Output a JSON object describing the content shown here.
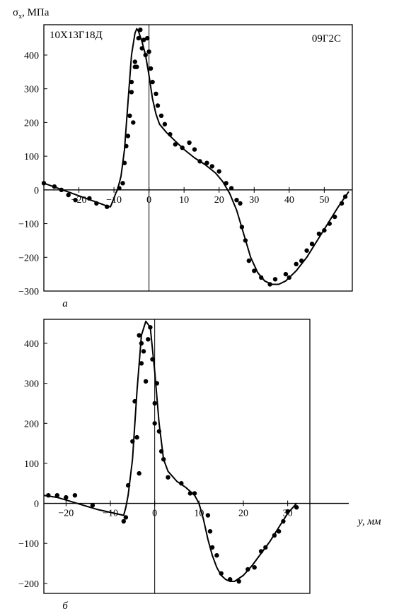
{
  "chart_data": [
    {
      "type": "scatter",
      "panel_label": "а",
      "ylabel": "σ",
      "ylabel_sub": "x",
      "ylabel_unit": ", МПа",
      "annotations": [
        "10Х13Г18Д",
        "09Г2С"
      ],
      "xlim": [
        -30,
        58
      ],
      "ylim": [
        -300,
        490
      ],
      "x_ticks": [
        -20,
        -10,
        0,
        10,
        20,
        30,
        40,
        50
      ],
      "y_ticks": [
        -300,
        -200,
        -100,
        0,
        100,
        200,
        300,
        400
      ],
      "series": [
        {
          "kind": "curve",
          "x": [
            -30,
            -26,
            -22,
            -18,
            -14,
            -12,
            -11,
            -10,
            -9.5,
            -9,
            -8,
            -7,
            -6,
            -5,
            -4,
            -3.5,
            -3,
            -2,
            -1,
            0,
            1,
            2,
            3,
            5,
            7,
            10,
            13,
            16,
            19,
            21,
            23,
            25,
            27,
            29,
            31,
            33,
            35,
            37,
            39,
            42,
            45,
            48,
            51,
            54,
            57
          ],
          "y": [
            20,
            5,
            -10,
            -25,
            -40,
            -48,
            -50,
            -25,
            -10,
            0,
            40,
            120,
            260,
            400,
            465,
            478,
            470,
            440,
            400,
            340,
            270,
            225,
            195,
            170,
            150,
            120,
            95,
            75,
            50,
            25,
            -10,
            -60,
            -130,
            -200,
            -245,
            -270,
            -280,
            -280,
            -270,
            -240,
            -200,
            -150,
            -100,
            -50,
            -5
          ]
        },
        {
          "kind": "points",
          "x": [
            -30,
            -27,
            -25,
            -23,
            -21,
            -17,
            -15,
            -12,
            -8.5,
            -7.5,
            -7,
            -6.5,
            -6,
            -5.5,
            -5,
            -5,
            -4.5,
            -4,
            -4,
            -3.5,
            -3,
            -2.5,
            -2,
            -1.5,
            -1,
            -0.5,
            0,
            0.5,
            1,
            2,
            2.5,
            3.5,
            4.5,
            6,
            7.5,
            9.5,
            11.5,
            13,
            14.5,
            16.5,
            18,
            20,
            22,
            23.5,
            25,
            26,
            26.5,
            27.5,
            28.5,
            30,
            32,
            34.5,
            36,
            39,
            40,
            42,
            43.5,
            45,
            46.5,
            48.5,
            50,
            51.5,
            53,
            55,
            56
          ],
          "y": [
            20,
            10,
            0,
            -15,
            -30,
            -25,
            -40,
            -50,
            5,
            20,
            80,
            130,
            160,
            220,
            290,
            320,
            200,
            365,
            380,
            365,
            450,
            475,
            420,
            445,
            400,
            450,
            410,
            360,
            320,
            285,
            250,
            220,
            195,
            165,
            135,
            125,
            140,
            120,
            85,
            80,
            70,
            55,
            20,
            5,
            -30,
            -40,
            -110,
            -150,
            -210,
            -240,
            -260,
            -280,
            -265,
            -250,
            -260,
            -220,
            -210,
            -180,
            -160,
            -130,
            -120,
            -100,
            -80,
            -40,
            -20
          ]
        }
      ]
    },
    {
      "type": "scatter",
      "panel_label": "б",
      "xlabel": "y, мм",
      "xlim": [
        -25,
        35
      ],
      "ylim": [
        -225,
        460
      ],
      "x_ticks": [
        -20,
        -10,
        0,
        10,
        20,
        30
      ],
      "y_ticks": [
        -200,
        -100,
        0,
        100,
        200,
        300,
        400
      ],
      "series": [
        {
          "kind": "curve",
          "x": [
            -25,
            -22,
            -19,
            -16,
            -13,
            -11,
            -7,
            -6.5,
            -6,
            -5,
            -4,
            -3,
            -2,
            -1,
            0,
            1,
            2,
            3,
            5,
            7,
            9,
            10,
            11,
            12,
            13,
            14,
            15,
            16,
            17,
            18,
            20,
            22,
            24,
            26,
            28,
            30,
            32
          ],
          "y": [
            20,
            15,
            5,
            -5,
            -15,
            -20,
            -30,
            -10,
            20,
            110,
            280,
            420,
            455,
            440,
            330,
            200,
            110,
            80,
            55,
            40,
            20,
            0,
            -40,
            -90,
            -130,
            -160,
            -180,
            -190,
            -195,
            -195,
            -180,
            -155,
            -125,
            -95,
            -60,
            -25,
            0
          ]
        },
        {
          "kind": "points",
          "x": [
            -24,
            -22,
            -20,
            -18,
            -14,
            -7,
            -6.5,
            -6,
            -5,
            -4.5,
            -4,
            -3.5,
            -3.5,
            -3,
            -3,
            -2.5,
            -2,
            -1.5,
            -1,
            -0.5,
            0,
            0,
            0.5,
            1,
            1.5,
            2,
            3,
            6,
            8,
            9,
            12,
            12.5,
            13,
            14,
            15,
            17,
            19,
            21,
            22.5,
            24,
            25,
            27,
            28,
            29,
            30,
            32
          ],
          "y": [
            20,
            20,
            15,
            20,
            -5,
            -45,
            -35,
            45,
            155,
            255,
            165,
            75,
            420,
            400,
            350,
            380,
            305,
            410,
            440,
            360,
            250,
            200,
            300,
            180,
            130,
            110,
            65,
            50,
            25,
            25,
            -30,
            -70,
            -110,
            -130,
            -175,
            -190,
            -195,
            -165,
            -160,
            -120,
            -110,
            -80,
            -70,
            -45,
            -20,
            -10
          ]
        }
      ]
    }
  ]
}
